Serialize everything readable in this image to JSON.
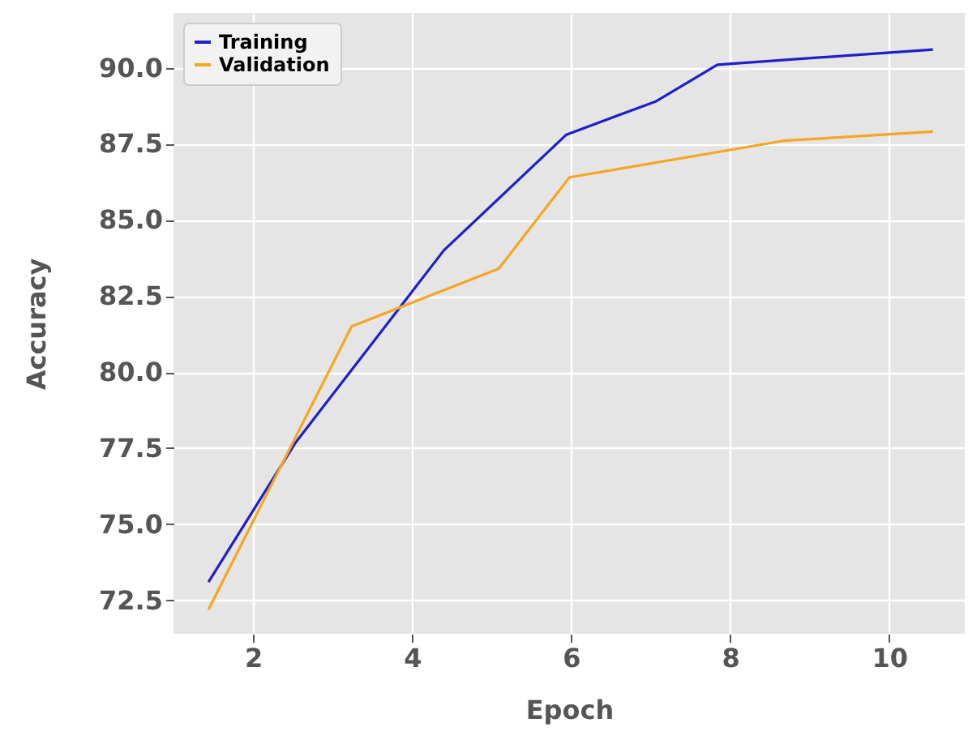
{
  "chart_data": {
    "type": "line",
    "xlabel": "Epoch",
    "ylabel": "Accuracy",
    "xlim": [
      1.0,
      10.95
    ],
    "ylim": [
      71.4,
      91.8
    ],
    "xticks": [
      2,
      4,
      6,
      8,
      10
    ],
    "yticks": [
      72.5,
      {
        "value": 75,
        "label": "75.0"
      },
      77.5,
      {
        "value": 80,
        "label": "80.0"
      },
      82.5,
      {
        "value": 85,
        "label": "85.0"
      },
      87.5,
      {
        "value": 90,
        "label": "90.0"
      }
    ],
    "grid": true,
    "legend": "top left",
    "marker": "none",
    "line_style": "solid",
    "series": [
      {
        "name": "Training",
        "color": "#2020c8",
        "x": [
          1.44,
          2.54,
          4.4,
          5.94,
          7.07,
          7.84,
          10.55
        ],
        "values": [
          73.1,
          77.7,
          84.0,
          87.8,
          88.9,
          90.1,
          90.6
        ]
      },
      {
        "name": "Validation",
        "color": "#f5a623",
        "x": [
          1.44,
          3.24,
          5.09,
          5.98,
          8.67,
          10.55
        ],
        "values": [
          72.2,
          81.5,
          83.4,
          86.4,
          87.6,
          87.9
        ]
      }
    ]
  }
}
